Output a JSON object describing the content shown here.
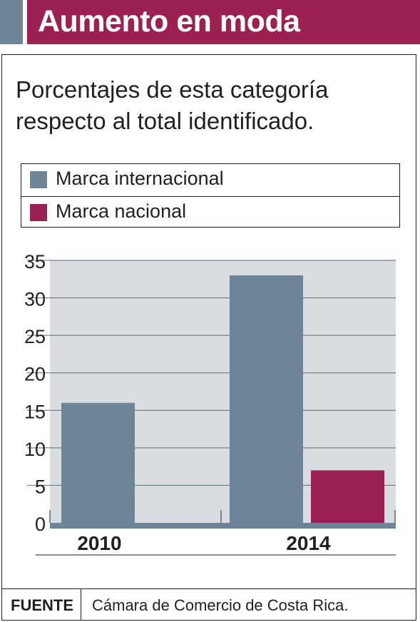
{
  "header": {
    "title": "Aumento en moda",
    "accent_color": "#6e8597",
    "band_color": "#9b2152"
  },
  "subtitle": "Porcentajes de esta categoría respecto al total identificado.",
  "chart_data": {
    "type": "bar",
    "categories": [
      "2010",
      "2014"
    ],
    "series": [
      {
        "name": "Marca internacional",
        "color": "#6e8597",
        "values": [
          16,
          33
        ]
      },
      {
        "name": "Marca nacional",
        "color": "#9b2152",
        "values": [
          0,
          7
        ]
      }
    ],
    "ylim": [
      0,
      35
    ],
    "yticks": [
      "0",
      "5",
      "10",
      "15",
      "20",
      "25",
      "30",
      "35"
    ],
    "grid": true,
    "plot_background": "#d9dde2"
  },
  "footer": {
    "label": "FUENTE",
    "source": "Cámara de Comercio de Costa Rica."
  }
}
